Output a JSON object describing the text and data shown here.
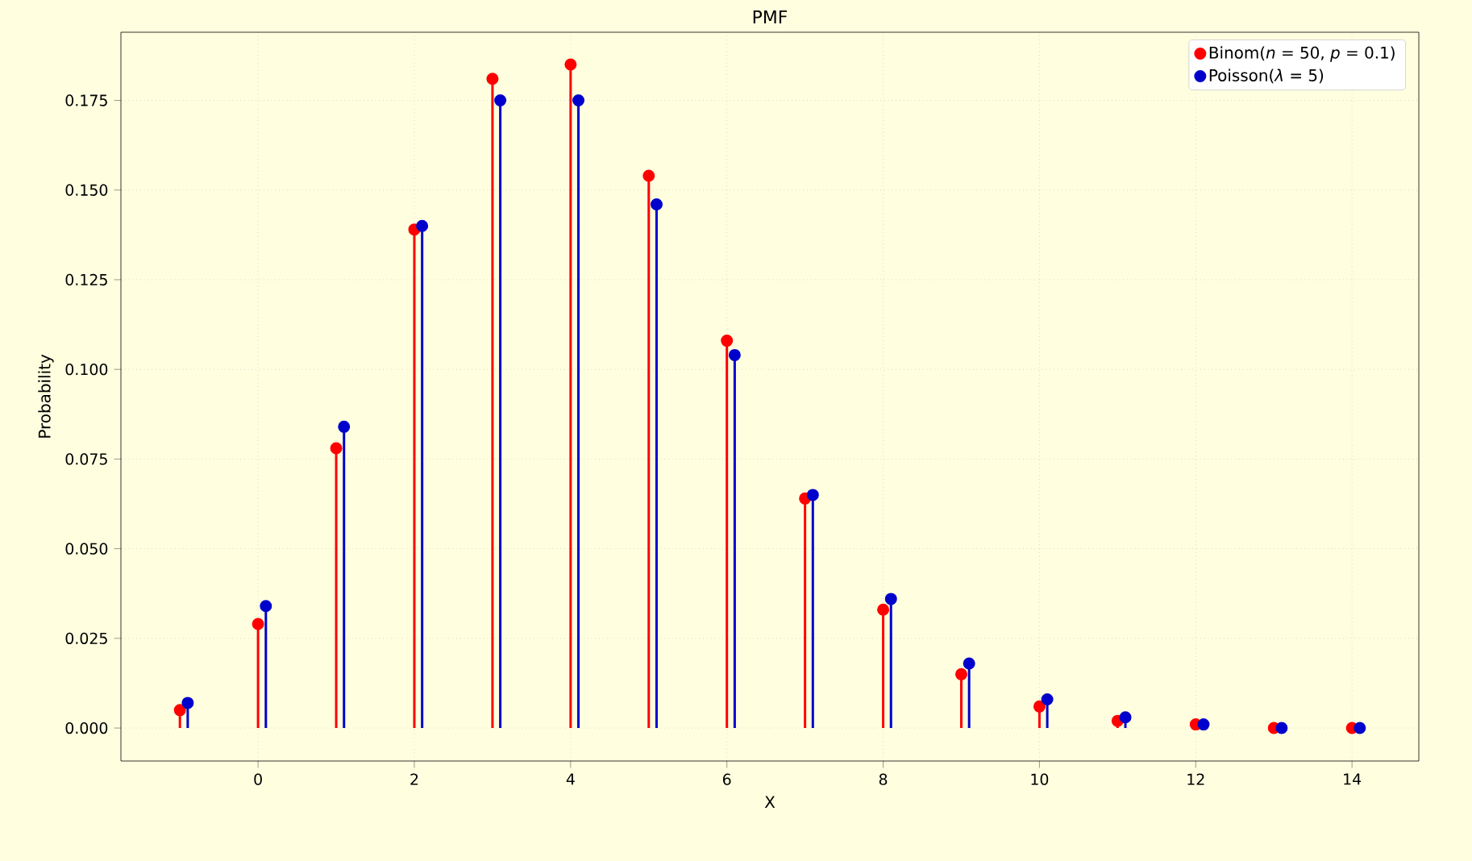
{
  "chart_data": {
    "type": "lollipop",
    "title": "PMF",
    "xlabel": "X",
    "ylabel": "Probability",
    "xlim": [
      -1.755,
      14.855
    ],
    "xticks": [
      0,
      2,
      4,
      6,
      8,
      10,
      12,
      14
    ],
    "ylim": [
      -0.0092,
      0.194
    ],
    "yticks": [
      {
        "value": 0,
        "label": "0.000"
      },
      {
        "value": 0.025,
        "label": "0.025"
      },
      {
        "value": 0.05,
        "label": "0.050"
      },
      {
        "value": 0.075,
        "label": "0.075"
      },
      {
        "value": 0.1,
        "label": "0.100"
      },
      {
        "value": 0.125,
        "label": "0.125"
      },
      {
        "value": 0.15,
        "label": "0.150"
      },
      {
        "value": 0.175,
        "label": "0.175"
      }
    ],
    "grid": true,
    "legend": "top right",
    "marker": "circle",
    "series": [
      {
        "name": "Binom(*n* = 50, *p* = 0.1)",
        "color": "#ff0000",
        "x": [
          -1,
          0,
          1,
          2,
          3,
          4,
          5,
          6,
          7,
          8,
          9,
          10,
          11,
          12,
          13,
          14
        ],
        "values": [
          0.005,
          0.029,
          0.078,
          0.139,
          0.181,
          0.185,
          0.154,
          0.108,
          0.064,
          0.033,
          0.015,
          0.006,
          0.002,
          0.001,
          0.0,
          0.0
        ]
      },
      {
        "name": "Poisson(*λ* = 5)",
        "color": "#0000cc",
        "x": [
          -0.9,
          0.1,
          1.1,
          2.1,
          3.1,
          4.1,
          5.1,
          6.1,
          7.1,
          8.1,
          9.1,
          10.1,
          11.1,
          12.1,
          13.1,
          14.1
        ],
        "values": [
          0.007,
          0.034,
          0.084,
          0.14,
          0.175,
          0.175,
          0.146,
          0.104,
          0.065,
          0.036,
          0.018,
          0.008,
          0.003,
          0.001,
          0.0,
          0.0
        ]
      }
    ]
  }
}
